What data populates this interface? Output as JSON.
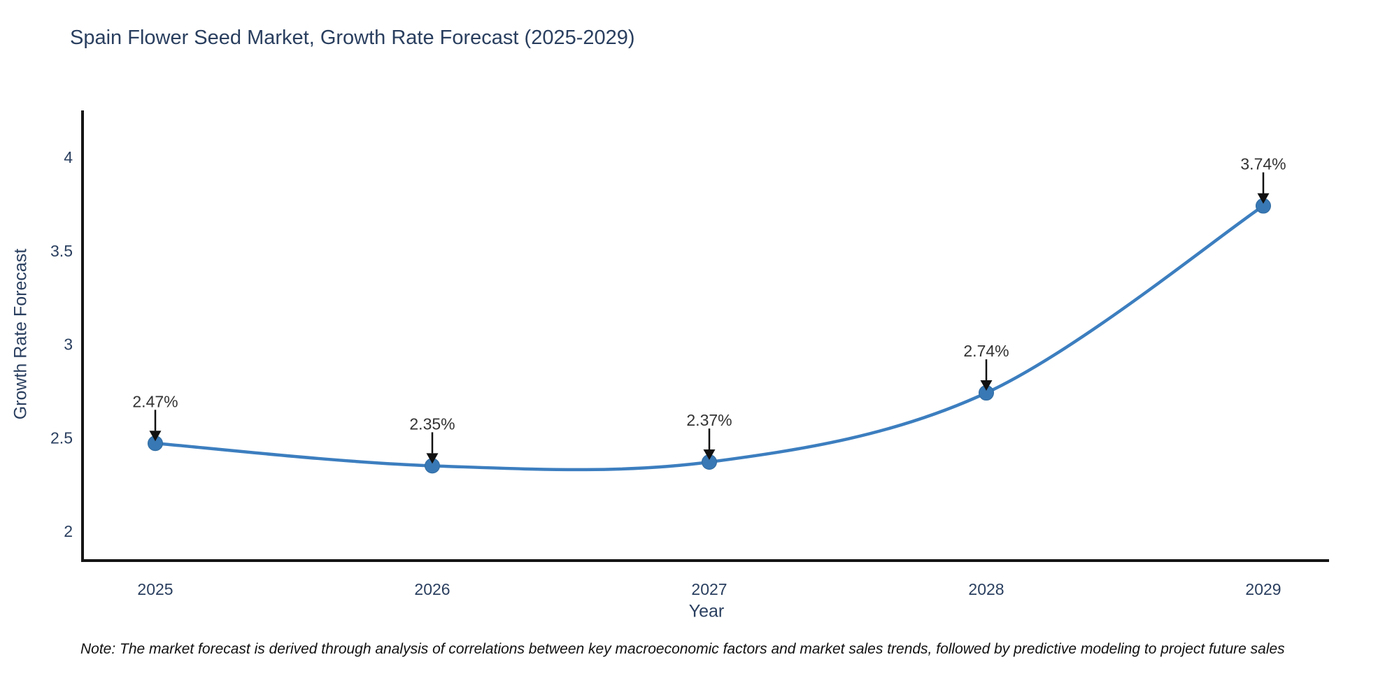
{
  "note": "Note: The market forecast is derived through analysis of correlations between key macroeconomic factors and market sales trends, followed by predictive modeling to project future sales",
  "chart_data": {
    "type": "line",
    "title": "Spain Flower Seed Market, Growth Rate Forecast (2025-2029)",
    "xlabel": "Year",
    "ylabel": "Growth Rate Forecast",
    "categories": [
      "2025",
      "2026",
      "2027",
      "2028",
      "2029"
    ],
    "values": [
      2.47,
      2.35,
      2.37,
      2.74,
      3.74
    ],
    "labels": [
      "2.47%",
      "2.35%",
      "2.37%",
      "2.74%",
      "3.74%"
    ],
    "yticks": [
      2,
      2.5,
      3,
      3.5,
      4
    ],
    "ytick_labels": [
      "2",
      "2.5",
      "3",
      "3.5",
      "4"
    ],
    "ylim": [
      1.84,
      4.26
    ],
    "grid": false,
    "legend": "none",
    "line_shape": "spline",
    "line_color": "#3c7ebf",
    "marker_color": "#3878b4",
    "marker_edge_color": "#2f6aa0",
    "axis_color": "#151515",
    "text_color": "#2a3f5f",
    "annotation_color": "#333333",
    "arrow_color": "#111111",
    "background_color": "#ffffff"
  }
}
